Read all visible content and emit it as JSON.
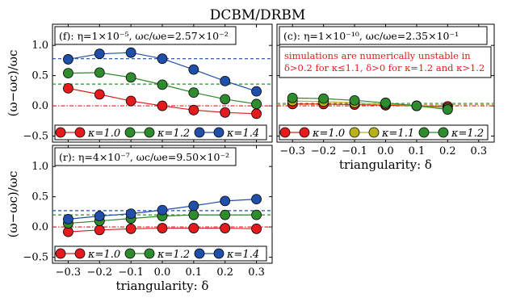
{
  "figure_title": "DCBM/DRBM",
  "colors": {
    "kappa_1_0": "#e41a1c",
    "kappa_1_1": "#b8b21a",
    "kappa_1_2": "#2e8b2e",
    "kappa_1_4": "#1f4fa8"
  },
  "chart_data": [
    {
      "id": "panel-f",
      "type": "line",
      "title": "(f): η=1×10⁻⁵, ωc/ωe=2.57×10⁻²",
      "xlabel": "",
      "ylabel": "(ω−ωc)/ωc",
      "xlim": [
        -0.35,
        0.35
      ],
      "ylim": [
        -0.6,
        1.35
      ],
      "xticks": [
        -0.3,
        -0.2,
        -0.1,
        0.0,
        0.1,
        0.2,
        0.3
      ],
      "yticks": [
        -0.5,
        0.0,
        0.5,
        1.0
      ],
      "ytick_labels": [
        "−0.5",
        "0.0",
        "0.5",
        "1.0"
      ],
      "x": [
        -0.3,
        -0.2,
        -0.1,
        0.0,
        0.1,
        0.2,
        0.3
      ],
      "series": [
        {
          "name": "κ=1.0",
          "color_key": "kappa_1_0",
          "values": [
            0.29,
            0.19,
            0.08,
            0.0,
            -0.07,
            -0.11,
            -0.13
          ],
          "hline": 0.0
        },
        {
          "name": "κ=1.2",
          "color_key": "kappa_1_2",
          "values": [
            0.54,
            0.55,
            0.47,
            0.35,
            0.22,
            0.11,
            0.03
          ],
          "hline": 0.36
        },
        {
          "name": "κ=1.4",
          "color_key": "kappa_1_4",
          "values": [
            0.77,
            0.86,
            0.88,
            0.78,
            0.6,
            0.41,
            0.24
          ],
          "hline": 0.78
        }
      ],
      "note": ""
    },
    {
      "id": "panel-c",
      "type": "line",
      "title": "(c): η=1×10⁻¹⁰, ωc/ωe=2.35×10⁻¹",
      "xlabel": "triangularity: δ",
      "ylabel": "",
      "xlim": [
        -0.35,
        0.35
      ],
      "ylim": [
        -0.6,
        1.35
      ],
      "xticks": [
        -0.3,
        -0.2,
        -0.1,
        0.0,
        0.1,
        0.2,
        0.3
      ],
      "yticks": [
        -0.5,
        0.0,
        0.5,
        1.0
      ],
      "ytick_labels": [
        "",
        "",
        "",
        ""
      ],
      "x": [
        -0.3,
        -0.2,
        -0.1,
        0.0,
        0.1,
        0.2
      ],
      "series": [
        {
          "name": "κ=1.0",
          "color_key": "kappa_1_0",
          "values": [
            0.03,
            0.03,
            0.02,
            0.01,
            0.0,
            -0.01
          ],
          "hline": 0.0
        },
        {
          "name": "κ=1.1",
          "color_key": "kappa_1_1",
          "values": [
            0.08,
            0.07,
            0.05,
            0.03,
            0.0,
            -0.04
          ],
          "hline": 0.02
        },
        {
          "name": "κ=1.2",
          "color_key": "kappa_1_2",
          "values": [
            0.13,
            0.12,
            0.09,
            0.05,
            0.0,
            -0.06
          ],
          "hline": 0.04
        }
      ],
      "note": [
        "simulations are numerically unstable in",
        "δ>0.2 for κ≤1.1, δ>0 for κ=1.2 and κ>1.2"
      ]
    },
    {
      "id": "panel-r",
      "type": "line",
      "title": "(r): η=4×10⁻⁷, ωc/ωe=9.50×10⁻²",
      "xlabel": "triangularity: δ",
      "ylabel": "(ω−ωc)/ωc",
      "xlim": [
        -0.35,
        0.35
      ],
      "ylim": [
        -0.6,
        1.35
      ],
      "xticks": [
        -0.3,
        -0.2,
        -0.1,
        0.0,
        0.1,
        0.2,
        0.3
      ],
      "yticks": [
        -0.5,
        0.0,
        0.5,
        1.0
      ],
      "ytick_labels": [
        "−0.5",
        "0.0",
        "0.5",
        "1.0"
      ],
      "x": [
        -0.3,
        -0.2,
        -0.1,
        0.0,
        0.1,
        0.2,
        0.3
      ],
      "series": [
        {
          "name": "κ=1.0",
          "color_key": "kappa_1_0",
          "values": [
            -0.08,
            -0.05,
            -0.03,
            -0.02,
            -0.02,
            -0.02,
            -0.03
          ],
          "hline": 0.0
        },
        {
          "name": "κ=1.2",
          "color_key": "kappa_1_2",
          "values": [
            0.06,
            0.1,
            0.14,
            0.18,
            0.2,
            0.2,
            0.2
          ],
          "hline": 0.2
        },
        {
          "name": "κ=1.4",
          "color_key": "kappa_1_4",
          "values": [
            0.13,
            0.18,
            0.22,
            0.28,
            0.35,
            0.43,
            0.46
          ],
          "hline": 0.27
        }
      ],
      "note": ""
    }
  ]
}
